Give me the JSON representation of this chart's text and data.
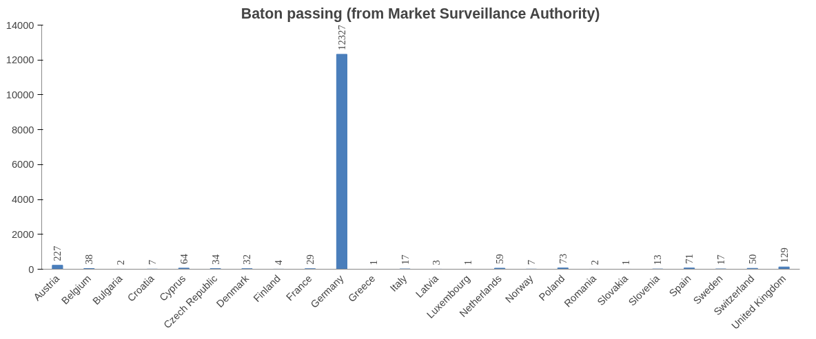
{
  "chart_data": {
    "type": "bar",
    "title": "Baton passing (from Market Surveillance Authority)",
    "categories": [
      "Austria",
      "Belgium",
      "Bulgaria",
      "Croatia",
      "Cyprus",
      "Czech Republic",
      "Denmark",
      "Finland",
      "France",
      "Germany",
      "Greece",
      "Italy",
      "Latvia",
      "Luxembourg",
      "Netherlands",
      "Norway",
      "Poland",
      "Romania",
      "Slovakia",
      "Slovenia",
      "Spain",
      "Sweden",
      "Switzerland",
      "United Kingdom"
    ],
    "values": [
      227,
      38,
      2,
      7,
      64,
      34,
      32,
      4,
      29,
      12327,
      1,
      17,
      3,
      1,
      59,
      7,
      73,
      2,
      1,
      13,
      71,
      17,
      50,
      129
    ],
    "color": "#4a7ebb",
    "ylim": [
      0,
      14000
    ],
    "yticks": [
      0,
      2000,
      4000,
      6000,
      8000,
      10000,
      12000,
      14000
    ],
    "grid": false,
    "data_labels": true
  }
}
